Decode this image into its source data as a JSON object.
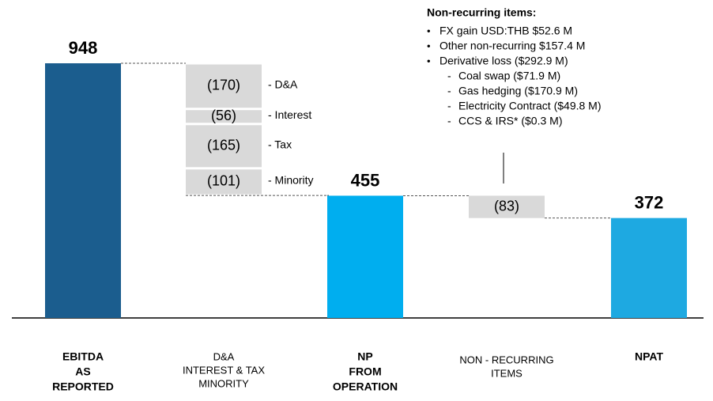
{
  "chart_data": {
    "type": "waterfall",
    "categories": [
      [
        "EBITDA",
        "AS",
        "REPORTED"
      ],
      [
        "D&A",
        "INTEREST & TAX",
        "MINORITY"
      ],
      [
        "NP",
        "FROM",
        "OPERATION"
      ],
      [
        "NON - RECURRING",
        "ITEMS"
      ],
      [
        "NPAT"
      ]
    ],
    "category_bold": [
      true,
      false,
      true,
      false,
      true
    ],
    "values": [
      [
        948
      ],
      [
        -170,
        -56,
        -165,
        -101
      ],
      [
        455
      ],
      [
        -83
      ],
      [
        372
      ]
    ],
    "value_labels": [
      [
        null
      ],
      [
        "(170)",
        "(56)",
        "(165)",
        "(101)"
      ],
      [
        null
      ],
      [
        "(83)"
      ],
      [
        null
      ]
    ],
    "segment_labels": [
      [
        null
      ],
      [
        "- D&A",
        "- Interest",
        "- Tax",
        "- Minority"
      ],
      [
        null
      ],
      [
        null
      ],
      [
        null
      ]
    ],
    "colors": [
      "#1b5d8e",
      "#d9d9d9",
      "#00aeef",
      "#d9d9d9",
      "#1ea9e1"
    ],
    "annotation": {
      "title": "Non-recurring items:",
      "items": [
        "FX gain USD:THB $52.6 M",
        "Other non-recurring $157.4 M",
        "Derivative loss ($292.9 M)"
      ],
      "subitems": [
        "Coal swap ($71.9 M)",
        "Gas hedging ($170.9 M)",
        "Electricity Contract ($49.8 M)",
        "CCS & IRS* ($0.3 M)"
      ]
    }
  }
}
